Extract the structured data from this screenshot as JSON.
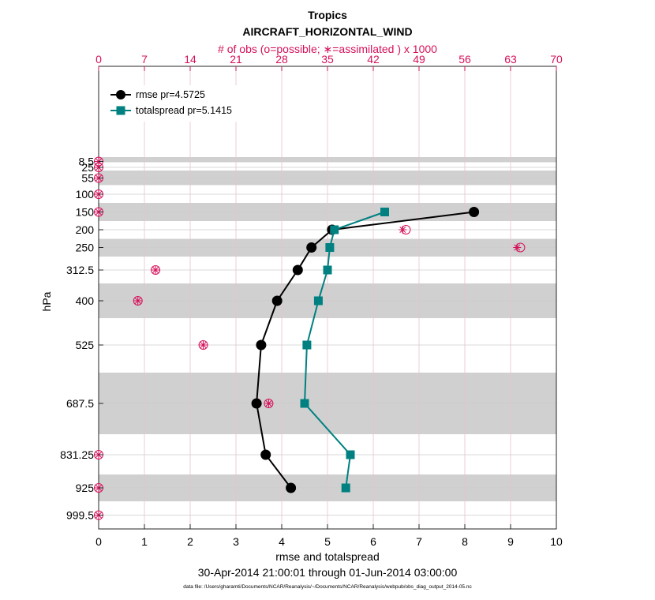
{
  "chart_data": {
    "type": "line",
    "title": "Tropics",
    "subtitle": "AIRCRAFT_HORIZONTAL_WIND",
    "top_axis_label": "# of obs (o=possible; ∗=assimilated ) x 1000",
    "xlabel": "rmse and totalspread",
    "ylabel": "hPa",
    "date_range": "30-Apr-2014 21:00:01 through 01-Jun-2014 03:00:00",
    "footnote": "data file: /Users/gharamti/Documents/NCAR/Reanalysis/~/Documents/NCAR/Reanalysis/webpub/obs_diag_output_2014-05.nc",
    "xlim": [
      0,
      10
    ],
    "x_ticks": [
      "0",
      "1",
      "2",
      "3",
      "4",
      "5",
      "6",
      "7",
      "8",
      "9",
      "10"
    ],
    "top_xlim": [
      0,
      70
    ],
    "top_ticks": [
      "0",
      "7",
      "14",
      "21",
      "28",
      "35",
      "42",
      "49",
      "56",
      "63",
      "70"
    ],
    "y_levels": [
      8.5,
      25,
      55,
      100,
      150,
      200,
      250,
      312.5,
      400,
      525,
      687.5,
      831.25,
      925,
      999.5
    ],
    "y_tick_labels": [
      "8.5",
      "25",
      "55",
      "100",
      "150",
      "200",
      "250",
      "312.5",
      "400",
      "525",
      "687.5",
      "831.25",
      "925",
      "999.5"
    ],
    "legend_position": "top-left",
    "series": [
      {
        "name": "rmse",
        "legend": "rmse pr=4.5725",
        "color": "#000000",
        "marker": "circle",
        "levels": [
          150,
          200,
          250,
          312.5,
          400,
          525,
          687.5,
          831.25,
          925
        ],
        "values": [
          8.2,
          5.1,
          4.65,
          4.35,
          3.9,
          3.55,
          3.45,
          3.65,
          4.2
        ]
      },
      {
        "name": "totalspread",
        "legend": "totalspread pr=5.1415",
        "color": "#008080",
        "marker": "square",
        "levels": [
          150,
          200,
          250,
          312.5,
          400,
          525,
          687.5,
          831.25,
          925
        ],
        "values": [
          6.25,
          5.15,
          5.05,
          5.0,
          4.8,
          4.55,
          4.5,
          5.5,
          5.4
        ]
      }
    ],
    "obs_counts_thousands": {
      "levels": [
        8.5,
        25,
        55,
        100,
        150,
        200,
        250,
        312.5,
        400,
        525,
        687.5,
        831.25,
        925,
        999.5
      ],
      "possible": [
        0,
        0,
        0,
        0,
        0,
        47,
        64.5,
        8.7,
        6,
        16,
        26,
        0,
        0,
        0
      ],
      "assimilated": [
        0,
        0,
        0,
        0,
        0,
        46.5,
        64,
        8.7,
        6,
        16,
        26,
        0,
        0,
        0
      ]
    },
    "colors": {
      "obs_axis": "#d6105a",
      "band": "#d0d0d0",
      "grid": "#cccccc"
    }
  }
}
